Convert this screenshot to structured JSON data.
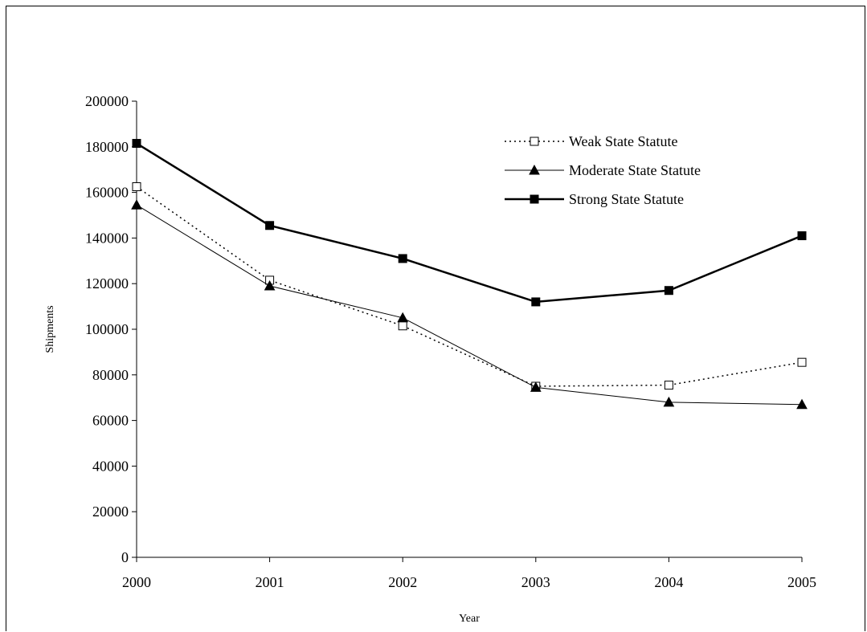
{
  "chart_data": {
    "type": "line",
    "title": "",
    "xlabel": "Year",
    "ylabel": "Shipments",
    "categories": [
      "2000",
      "2001",
      "2002",
      "2003",
      "2004",
      "2005"
    ],
    "ylim": [
      0,
      200000
    ],
    "yticks": [
      "0",
      "20000",
      "40000",
      "60000",
      "80000",
      "100000",
      "120000",
      "140000",
      "160000",
      "180000",
      "200000"
    ],
    "grid": false,
    "legend_position": "top-right",
    "series": [
      {
        "name": "Weak State Statute",
        "style": "dotted",
        "marker": "open-square",
        "color": "#000000",
        "values": [
          162500,
          121500,
          101500,
          75000,
          75500,
          85500
        ]
      },
      {
        "name": "Moderate State Statute",
        "style": "thin-solid",
        "marker": "filled-triangle",
        "color": "#000000",
        "values": [
          154500,
          119000,
          105000,
          74500,
          68000,
          67000
        ]
      },
      {
        "name": "Strong State Statute",
        "style": "thick-solid",
        "marker": "filled-square",
        "color": "#000000",
        "values": [
          181500,
          145500,
          131000,
          112000,
          117000,
          141000
        ]
      }
    ]
  }
}
